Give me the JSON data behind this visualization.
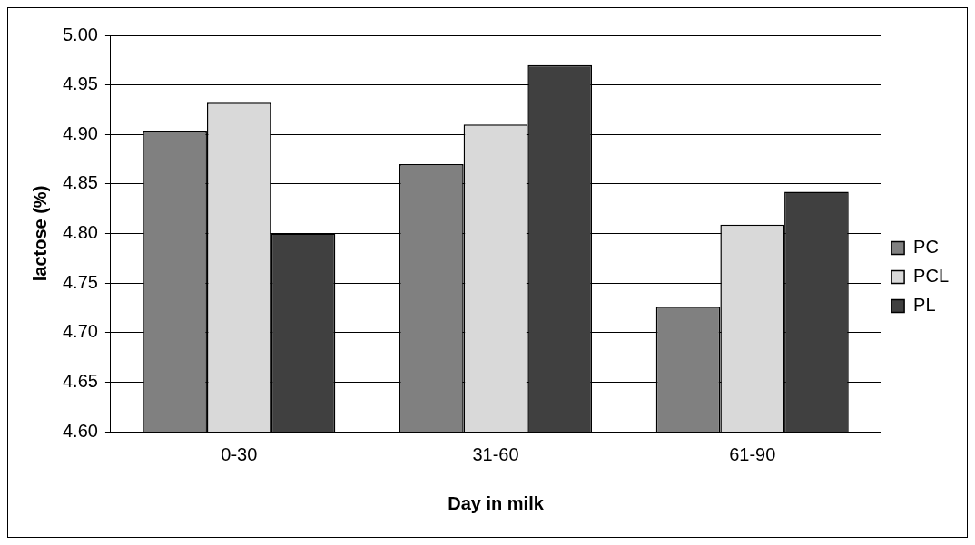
{
  "chart_data": {
    "type": "bar",
    "xlabel": "Day in milk",
    "ylabel": "lactose (%)",
    "categories": [
      "0-30",
      "31-60",
      "61-90"
    ],
    "series": [
      {
        "name": "PC",
        "color": "#808080",
        "values": [
          4.903,
          4.87,
          4.726
        ]
      },
      {
        "name": "PCL",
        "color": "#d9d9d9",
        "values": [
          4.932,
          4.91,
          4.809
        ]
      },
      {
        "name": "PL",
        "color": "#404040",
        "values": [
          4.8,
          4.97,
          4.842
        ]
      }
    ],
    "ylim": [
      4.6,
      5.0
    ],
    "yticks": [
      {
        "value": 4.6,
        "label": "4.60"
      },
      {
        "value": 4.65,
        "label": "4.65"
      },
      {
        "value": 4.7,
        "label": "4.70"
      },
      {
        "value": 4.75,
        "label": "4.75"
      },
      {
        "value": 4.8,
        "label": "4.80"
      },
      {
        "value": 4.85,
        "label": "4.85"
      },
      {
        "value": 4.9,
        "label": "4.90"
      },
      {
        "value": 4.95,
        "label": "4.95"
      },
      {
        "value": 5.0,
        "label": "5.00"
      }
    ],
    "grid": "y",
    "legend": "right"
  }
}
